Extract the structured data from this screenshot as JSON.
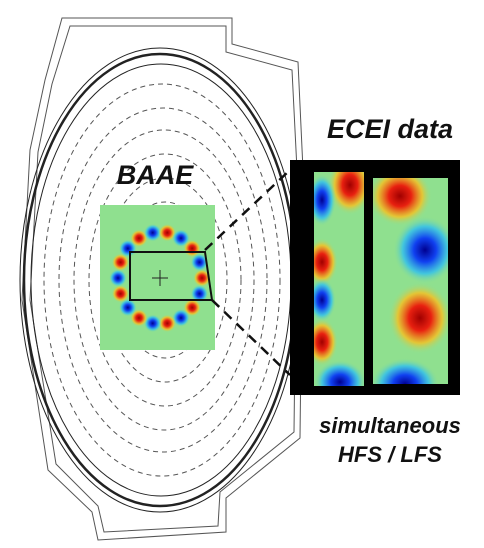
{
  "labels": {
    "mode": "BAAE",
    "ecei": "ECEI data",
    "caption": [
      "simultaneous",
      "HFS / LFS"
    ]
  }
}
